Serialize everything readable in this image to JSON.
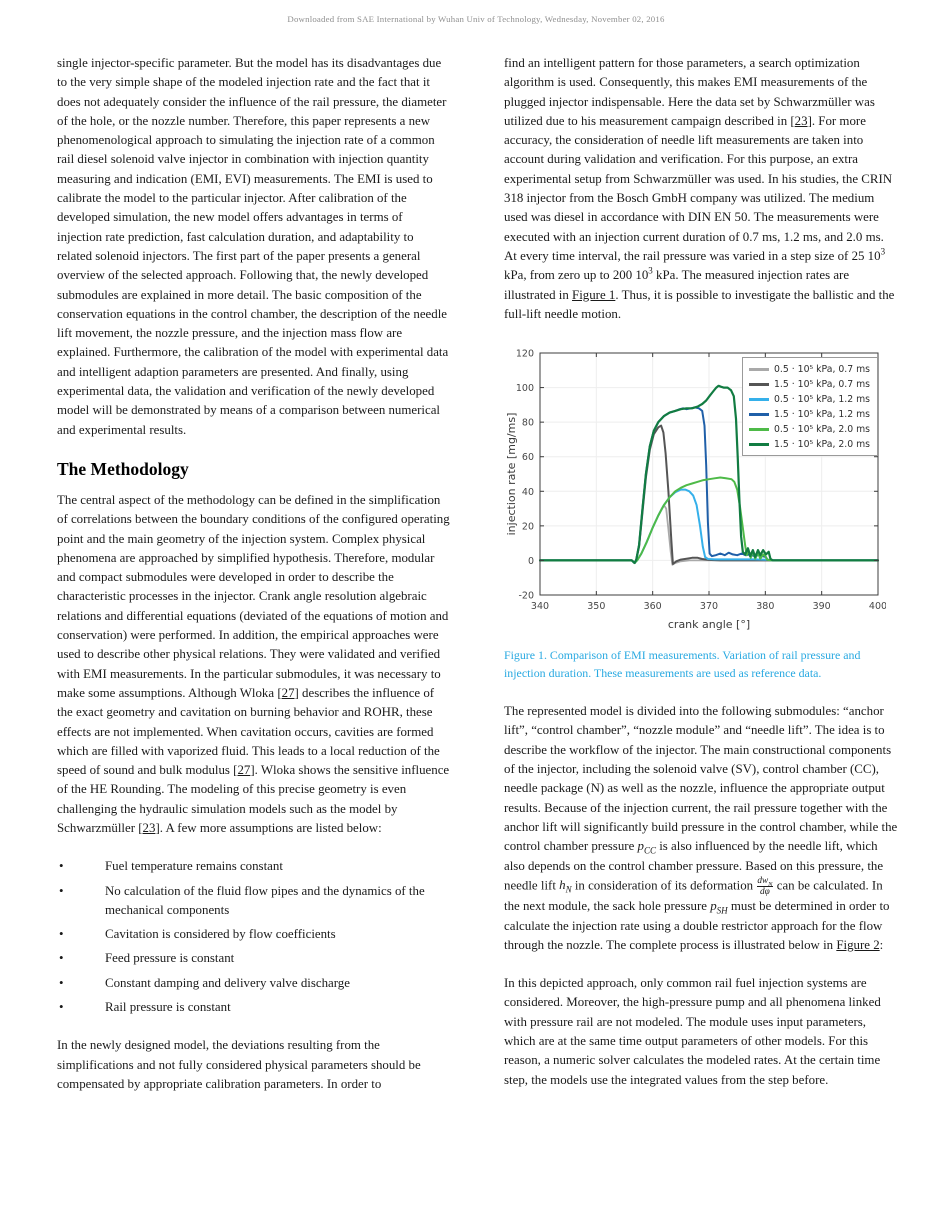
{
  "header": {
    "text": "Downloaded from SAE International by Wuhan Univ of Technology, Wednesday, November 02, 2016"
  },
  "left_column": {
    "para1_html": "single injector-specific parameter. But the model has its disadvantages due to the very simple shape of the modeled injection rate and the fact that it does not adequately consider the influence of the rail pressure, the diameter of the hole, or the nozzle number. Therefore, this paper represents a new phenomenological approach to simulating the injection rate of a common rail diesel solenoid valve injector in combination with injection quantity measuring and indication (EMI, EVI) measurements. The EMI is used to calibrate the model to the particular injector. After calibration of the developed simulation, the new model offers advantages in terms of injection rate prediction, fast calculation duration, and adaptability to related solenoid injectors. The first part of the paper presents a general overview of the selected approach. Following that, the newly developed submodules are explained in more detail. The basic composition of the conservation equations in the control chamber, the description of the needle lift movement, the nozzle pressure, and the injection mass flow are explained. Furthermore, the calibration of the model with experimental data and intelligent adaption parameters are presented. And finally, using experimental data, the validation and verification of the newly developed model will be demonstrated by means of a comparison between numerical and experimental results.",
    "heading": "The Methodology",
    "para2_html": "The central aspect of the methodology can be defined in the simplification of correlations between the boundary conditions of the configured operating point and the main geometry of the injection system. Complex physical phenomena are approached by simplified hypothesis. Therefore, modular and compact submodules were developed in order to describe the characteristic processes in the injector. Crank angle resolution algebraic relations and differential equations (deviated of the equations of motion and conservation) were performed. In addition, the empirical approaches were used to describe other physical relations. They were validated and verified with EMI measurements. In the particular submodules, it was necessary to make some assumptions. Although Wloka [<span class=\"xref\" data-name=\"ref-27-link\" data-interactable=\"true\">27</span>] describes the influence of the exact geometry and cavitation on burning behavior and ROHR, these effects are not implemented. When cavitation occurs, cavities are formed which are filled with vaporized fluid. This leads to a local reduction of the speed of sound and bulk modulus [<span class=\"xref\" data-name=\"ref-27-link\" data-interactable=\"true\">27</span>]. Wloka shows the sensitive influence of the HE Rounding. The modeling of this precise geometry is even challenging the hydraulic simulation models such as the model by Schwarzmüller [<span class=\"xref\" data-name=\"ref-23-link\" data-interactable=\"true\">23</span>]. A few more assumptions are listed below:",
    "bullets": [
      "Fuel temperature remains constant",
      "No calculation of the fluid flow pipes and the dynamics of the mechanical components",
      "Cavitation is considered by flow coefficients",
      "Feed pressure is constant",
      "Constant damping and delivery valve discharge",
      "Rail pressure is constant"
    ],
    "para3_html": "In the newly designed model, the deviations resulting from the simplifications and not fully considered physical parameters should be compensated by appropriate calibration parameters. In order to"
  },
  "right_column": {
    "para1_html": "find an intelligent pattern for those parameters, a search optimization algorithm is used. Consequently, this makes EMI measurements of the plugged injector indispensable. Here the data set by Schwarzmüller was utilized due to his measurement campaign described in [<span class=\"xref\" data-name=\"ref-23-link\" data-interactable=\"true\">23</span>]. For more accuracy, the consideration of needle lift measurements are taken into account during validation and verification. For this purpose, an extra experimental setup from Schwarzmüller was used. In his studies, the CRIN 318 injector from the Bosch GmbH company was utilized. The medium used was diesel in accordance with DIN EN 50. The measurements were executed with an injection current duration of 0.7 ms, 1.2 ms, and 2.0 ms. At every time interval, the rail pressure was varied in a step size of 25 10<sup>3</sup> kPa, from zero up to 200 10<sup>3</sup> kPa. The measured injection rates are illustrated in <span class=\"xref\" data-name=\"figure-1-link\" data-interactable=\"true\">Figure 1</span>. Thus, it is possible to investigate the ballistic and the full-lift needle motion.",
    "caption_html": "Figure 1. Comparison of EMI measurements. Variation of rail pressure and injection duration. These measurements are used as reference data.",
    "para2_html": "The represented model is divided into the following submodules: “anchor lift”, “control chamber”, “nozzle module” and “needle lift”. The idea is to describe the workflow of the injector. The main constructional components of the injector, including the solenoid valve (SV), control chamber (CC), needle package (N) as well as the nozzle, influence the appropriate output results. Because of the injection current, the rail pressure together with the anchor lift will significantly build pressure in the control chamber, while the control chamber pressure <i>p<sub>CC</sub></i> is also influenced by the needle lift, which also depends on the control chamber pressure. Based on this pressure, the needle lift <i>h<sub>N</sub></i> in consideration of its deformation <span class=\"frac\"><span class=\"nm\"><i>dw<sub>N</sub></i></span><span class=\"dn\"><i>dφ</i></span></span> can be calculated. In the next module, the sack hole pressure <i>p<sub>SH</sub></i> must be determined in order to calculate the injection rate using a double restrictor approach for the flow through the nozzle. The complete process is illustrated below in <span class=\"xref\" data-name=\"figure-2-link\" data-interactable=\"true\">Figure 2</span>:",
    "para3_html": "In this depicted approach, only common rail fuel injection systems are considered. Moreover, the high-pressure pump and all phenomena linked with pressure rail are not modeled. The module uses input parameters, which are at the same time output parameters of other models. For this reason, a numeric solver calculates the modeled rates. At the certain time step, the models use the integrated values from the step before."
  },
  "chart_data": {
    "type": "line",
    "title": "",
    "xlabel": "crank angle [°]",
    "ylabel": "injection rate [mg/ms]",
    "xlim": [
      340,
      400
    ],
    "ylim": [
      -20,
      120
    ],
    "xticks": [
      340,
      350,
      360,
      370,
      380,
      390,
      400
    ],
    "yticks": [
      -20,
      0,
      20,
      40,
      60,
      80,
      100,
      120
    ],
    "grid": true,
    "legend_position": "top-right",
    "series": [
      {
        "name": "0.5 · 10⁵ kPa, 0.7 ms",
        "color": "#a9a9a9",
        "width": 1.8,
        "points": [
          [
            340,
            0
          ],
          [
            356.3,
            0
          ],
          [
            356.8,
            -1.5
          ],
          [
            357.3,
            0.3
          ],
          [
            358,
            4
          ],
          [
            359,
            11
          ],
          [
            360,
            19
          ],
          [
            361,
            26
          ],
          [
            361.6,
            30
          ],
          [
            362,
            32
          ],
          [
            362.4,
            30
          ],
          [
            362.8,
            18
          ],
          [
            363.2,
            5
          ],
          [
            363.5,
            -2.5
          ],
          [
            364,
            -1.5
          ],
          [
            365,
            -0.5
          ],
          [
            366.5,
            0
          ],
          [
            400,
            0
          ]
        ]
      },
      {
        "name": "1.5 · 10⁵ kPa, 0.7 ms",
        "color": "#555555",
        "width": 2,
        "points": [
          [
            340,
            0
          ],
          [
            356.3,
            0
          ],
          [
            356.8,
            -1.5
          ],
          [
            357.1,
            0.5
          ],
          [
            357.6,
            8
          ],
          [
            358.2,
            28
          ],
          [
            358.8,
            48
          ],
          [
            359.5,
            64
          ],
          [
            360.2,
            73
          ],
          [
            361,
            77
          ],
          [
            361.5,
            78
          ],
          [
            361.9,
            74
          ],
          [
            362.3,
            62
          ],
          [
            362.8,
            40
          ],
          [
            363.3,
            12
          ],
          [
            363.6,
            -2
          ],
          [
            364.2,
            -0.5
          ],
          [
            365,
            0.5
          ],
          [
            366,
            1
          ],
          [
            367,
            1.5
          ],
          [
            368,
            1.5
          ],
          [
            368.8,
            0.8
          ],
          [
            370,
            0.3
          ],
          [
            372,
            0
          ],
          [
            400,
            0
          ]
        ]
      },
      {
        "name": "0.5 · 10⁵ kPa, 1.2 ms",
        "color": "#35b0ea",
        "width": 2,
        "points": [
          [
            340,
            0
          ],
          [
            356.3,
            0
          ],
          [
            356.8,
            -1.5
          ],
          [
            357.3,
            0.3
          ],
          [
            358,
            4
          ],
          [
            359,
            11
          ],
          [
            360,
            19
          ],
          [
            361,
            26
          ],
          [
            362,
            32
          ],
          [
            363,
            36.5
          ],
          [
            364,
            39.5
          ],
          [
            365,
            41
          ],
          [
            365.8,
            41
          ],
          [
            366.5,
            40
          ],
          [
            367.2,
            37.5
          ],
          [
            367.8,
            32
          ],
          [
            368.4,
            20
          ],
          [
            368.9,
            8
          ],
          [
            369.3,
            2
          ],
          [
            369.8,
            0.8
          ],
          [
            371,
            0.6
          ],
          [
            374,
            0.6
          ],
          [
            378,
            0.6
          ],
          [
            380.5,
            0.4
          ],
          [
            381,
            0
          ],
          [
            400,
            0
          ]
        ]
      },
      {
        "name": "1.5 · 10⁵ kPa, 1.2 ms",
        "color": "#1f5fa8",
        "width": 2,
        "points": [
          [
            340,
            0
          ],
          [
            356.3,
            0
          ],
          [
            356.8,
            -1.5
          ],
          [
            357.1,
            0.5
          ],
          [
            357.6,
            9
          ],
          [
            358.2,
            30
          ],
          [
            358.8,
            50
          ],
          [
            359.5,
            66
          ],
          [
            360.2,
            75
          ],
          [
            361,
            80
          ],
          [
            362,
            83.5
          ],
          [
            363,
            85.5
          ],
          [
            364,
            86.5
          ],
          [
            364.8,
            87.5
          ],
          [
            365.4,
            88
          ],
          [
            366,
            87.5
          ],
          [
            366.8,
            88
          ],
          [
            367.5,
            88.5
          ],
          [
            368.2,
            88
          ],
          [
            368.8,
            86.5
          ],
          [
            369.2,
            78
          ],
          [
            369.5,
            55
          ],
          [
            369.8,
            22
          ],
          [
            370.1,
            4
          ],
          [
            370.5,
            2.5
          ],
          [
            371.2,
            3
          ],
          [
            372,
            4
          ],
          [
            372.8,
            3
          ],
          [
            373.5,
            4.5
          ],
          [
            374.2,
            3.5
          ],
          [
            375,
            3
          ],
          [
            375.8,
            4
          ],
          [
            376.5,
            3
          ],
          [
            377.3,
            3.5
          ],
          [
            378,
            2.5
          ],
          [
            378.8,
            3
          ],
          [
            379.5,
            2.5
          ],
          [
            380.1,
            2
          ],
          [
            380.4,
            0.3
          ],
          [
            381,
            0
          ],
          [
            400,
            0
          ]
        ]
      },
      {
        "name": "0.5 · 10⁵ kPa, 2.0 ms",
        "color": "#4eba48",
        "width": 2,
        "points": [
          [
            340,
            0
          ],
          [
            356.3,
            0
          ],
          [
            356.8,
            -1.5
          ],
          [
            357.3,
            0.3
          ],
          [
            358,
            4
          ],
          [
            359,
            11
          ],
          [
            360,
            19
          ],
          [
            361,
            26
          ],
          [
            362,
            32
          ],
          [
            363,
            36.5
          ],
          [
            364,
            40
          ],
          [
            365,
            42
          ],
          [
            366,
            43.5
          ],
          [
            367,
            44.5
          ],
          [
            368,
            45.5
          ],
          [
            369,
            46.5
          ],
          [
            370,
            47
          ],
          [
            371,
            47.5
          ],
          [
            372,
            48
          ],
          [
            373,
            47.5
          ],
          [
            374,
            47
          ],
          [
            374.5,
            45.5
          ],
          [
            375,
            41
          ],
          [
            375.5,
            31
          ],
          [
            376,
            19
          ],
          [
            376.4,
            9
          ],
          [
            376.7,
            3
          ],
          [
            377,
            6.5
          ],
          [
            377.4,
            1.5
          ],
          [
            377.8,
            5.5
          ],
          [
            378.2,
            1
          ],
          [
            378.7,
            4.5
          ],
          [
            379.1,
            1
          ],
          [
            379.6,
            3.5
          ],
          [
            380,
            2.5
          ],
          [
            380.3,
            0.5
          ],
          [
            381,
            0
          ],
          [
            400,
            0
          ]
        ]
      },
      {
        "name": "1.5 · 10⁵ kPa, 2.0 ms",
        "color": "#127c42",
        "width": 2.2,
        "points": [
          [
            340,
            0
          ],
          [
            356.3,
            0
          ],
          [
            356.8,
            -1.5
          ],
          [
            357.1,
            0.5
          ],
          [
            357.6,
            9
          ],
          [
            358.2,
            30
          ],
          [
            358.8,
            50
          ],
          [
            359.5,
            66
          ],
          [
            360.2,
            75
          ],
          [
            361,
            80
          ],
          [
            362,
            83.5
          ],
          [
            363,
            85.5
          ],
          [
            364,
            86.5
          ],
          [
            365,
            87.5
          ],
          [
            366,
            88
          ],
          [
            367,
            88
          ],
          [
            368,
            89
          ],
          [
            368.8,
            90.5
          ],
          [
            369.5,
            92.5
          ],
          [
            370.2,
            95.5
          ],
          [
            370.8,
            98
          ],
          [
            371.3,
            100
          ],
          [
            371.7,
            101
          ],
          [
            372.1,
            100.5
          ],
          [
            372.6,
            100
          ],
          [
            373.3,
            100
          ],
          [
            373.9,
            98.5
          ],
          [
            374.4,
            95
          ],
          [
            374.8,
            82
          ],
          [
            375.1,
            60
          ],
          [
            375.4,
            35
          ],
          [
            375.7,
            14
          ],
          [
            376,
            5
          ],
          [
            376.4,
            3.5
          ],
          [
            376.9,
            7
          ],
          [
            377.3,
            2.5
          ],
          [
            377.8,
            6
          ],
          [
            378.2,
            2
          ],
          [
            378.7,
            6
          ],
          [
            379.1,
            3
          ],
          [
            379.6,
            6
          ],
          [
            380.1,
            3.5
          ],
          [
            380.6,
            5
          ],
          [
            380.9,
            1
          ],
          [
            381.3,
            0
          ],
          [
            400,
            0
          ]
        ]
      }
    ]
  }
}
